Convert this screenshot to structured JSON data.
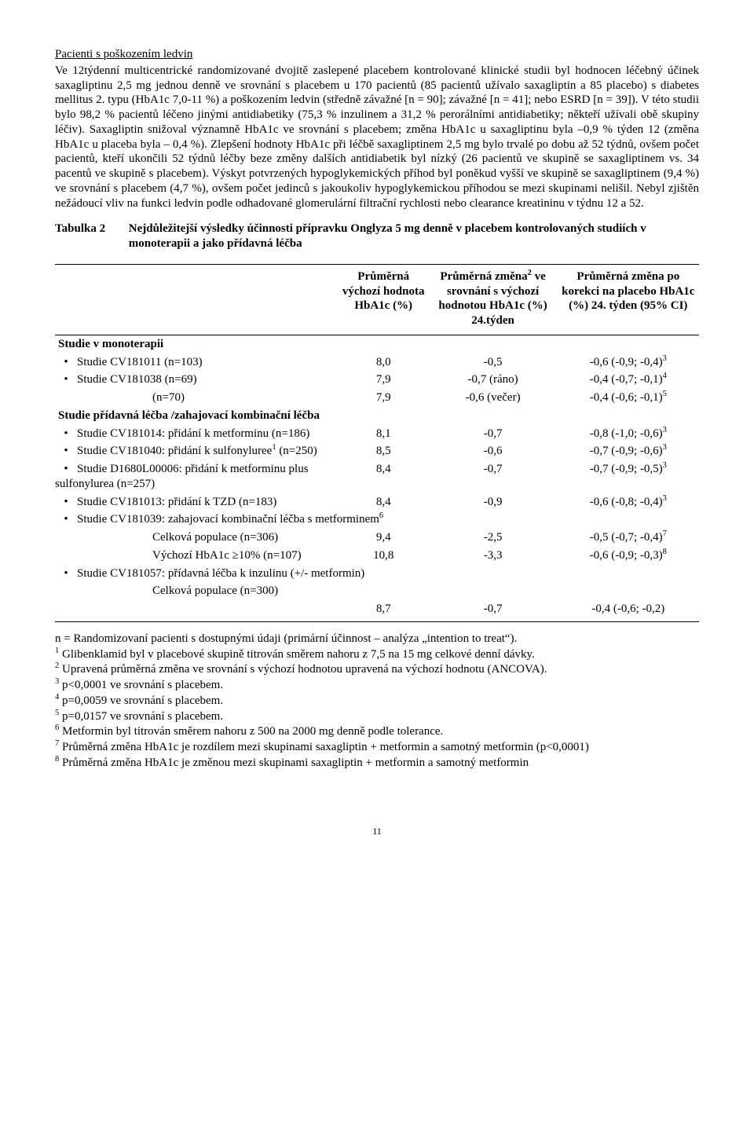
{
  "heading": "Pacienti s poškozením ledvin",
  "paragraph": "Ve 12týdenní multicentrické randomizované dvojitě zaslepené placebem kontrolované klinické studii byl hodnocen léčebný účinek saxagliptinu 2,5 mg jednou denně ve srovnání s placebem u 170 pacientů (85 pacientů užívalo saxagliptin a 85 placebo) s diabetes mellitus 2. typu (HbA1c 7,0-11 %) a poškozením ledvin (středně závažné [n = 90]; závažné [n = 41]; nebo ESRD [n = 39]). V této studii bylo 98,2 % pacientů léčeno jinými antidiabetiky (75,3 % inzulinem a 31,2 % perorálními antidiabetiky; někteří užívali obě skupiny léčiv). Saxagliptin snižoval významně HbA1c ve srovnání s placebem; změna HbA1c u saxagliptinu byla –0,9 % týden 12 (změna HbA1c u placeba byla – 0,4 %). Zlepšení hodnoty HbA1c při léčbě saxagliptinem 2,5 mg bylo trvalé po dobu až 52 týdnů, ovšem počet pacientů, kteří ukončili 52 týdnů léčby beze změny dalších antidiabetik byl nízký (26 pacientů ve skupině se saxagliptinem vs. 34 pacentů ve skupině s placebem). Výskyt potvrzených hypoglykemických příhod byl poněkud vyšší ve skupině se saxagliptinem (9,4 %) ve srovnání s placebem (4,7 %), ovšem počet jedinců s jakoukoliv hypoglykemickou příhodou se mezi skupinami nelišil. Nebyl zjištěn nežádoucí vliv na funkci ledvin podle odhadované glomerulární filtrační rychlosti nebo clearance kreatininu v týdnu 12 a 52.",
  "table_caption_lead": "Tabulka 2",
  "table_caption_rest": "Nejdůležitejší výsledky účinnosti přípravku Onglyza 5 mg denně v placebem kontrolovaných studiích v monoterapii a jako přídavná léčba",
  "columns": {
    "c1": "",
    "c2": "Průměrná výchozí hodnota HbA1c (%)",
    "c3_l1": "Průměrná změna",
    "c3_sup": "2",
    "c3_l2": " ve srovnání s výchozí hodnotou HbA1c (%) 24.týden",
    "c4": "Průměrná změna po korekci na placebo HbA1c (%) 24. týden (95% CI)"
  },
  "groups": {
    "g1": "Studie v monoterapii",
    "g2": "Studie přídavná léčba /zahajovací kombinační léčba"
  },
  "rows": {
    "r1": {
      "label": "Studie CV181011 (n=103)",
      "a": "8,0",
      "b": "-0,5",
      "c": "-0,6 (-0,9; -0,4)",
      "csup": "3"
    },
    "r2": {
      "label": "Studie CV181038 (n=69)",
      "a": "7,9",
      "b": "-0,7 (ráno)",
      "c": "-0,4 (-0,7; -0,1)",
      "csup": "4"
    },
    "r2b": {
      "label": "(n=70)",
      "a": "7,9",
      "b": "-0,6 (večer)",
      "c": "-0,4 (-0,6; -0,1)",
      "csup": "5"
    },
    "r3": {
      "label": "Studie CV181014: přidání k metforminu (n=186)",
      "a": "8,1",
      "b": "-0,7",
      "c": "-0,8 (-1,0; -0,6)",
      "csup": "3"
    },
    "r4": {
      "label_a": "Studie CV181040: přidání k sulfonyluree",
      "label_sup": "1",
      "label_b": " (n=250)",
      "a": "8,5",
      "b": "-0,6",
      "c": "-0,7 (-0,9; -0,6)",
      "csup": "3"
    },
    "r5": {
      "label": "Studie D1680L00006: přidání k metforminu plus sulfonylurea (n=257)",
      "a": "8,4",
      "b": "-0,7",
      "c": "-0,7 (-0,9; -0,5)",
      "csup": "3"
    },
    "r6": {
      "label": "Studie CV181013: přidání k TZD (n=183)",
      "a": "8,4",
      "b": "-0,9",
      "c": "-0,6 (-0,8; -0,4)",
      "csup": "3"
    },
    "r7": {
      "label_a": "Studie CV181039: zahajovací kombinační léčba s metforminem",
      "label_sup": "6"
    },
    "r7a": {
      "label": "Celková populace (n=306)",
      "a": "9,4",
      "b": "-2,5",
      "c": "-0,5 (-0,7; -0,4)",
      "csup": "7"
    },
    "r7b": {
      "label": "Výchozí HbA1c ≥10% (n=107)",
      "a": "10,8",
      "b": "-3,3",
      "c": "-0,6 (-0,9; -0,3)",
      "csup": "8"
    },
    "r8": {
      "label": "Studie CV181057: přídavná léčba k inzulinu (+/- metformin)"
    },
    "r8a": {
      "label": "Celková populace (n=300)",
      "a": "8,7",
      "b": "-0,7",
      "c": "-0,4 (-0,6; -0,2)"
    }
  },
  "footnotes": {
    "f1": "n = Randomizovaní pacienti s dostupnými údaji (primární účinnost – analýza „intention to treat“).",
    "f2a": "1",
    "f2b": " Glibenklamid byl v placebové skupině titrován směrem nahoru z 7,5 na 15 mg celkové denní dávky.",
    "f3a": "2",
    "f3b": " Upravená průměrná změna ve srovnání s výchozí hodnotou upravená na výchozí hodnotu (ANCOVA).",
    "f4a": "3",
    "f4b": " p<0,0001 ve srovnání s placebem.",
    "f5a": "4",
    "f5b": " p=0,0059 ve srovnání s placebem.",
    "f6a": "5",
    "f6b": " p=0,0157 ve srovnání s placebem.",
    "f7a": "6",
    "f7b": " Metformin byl titrován směrem nahoru z 500 na 2000 mg denně podle tolerance.",
    "f8a": "7",
    "f8b": " Průměrná změna HbA1c je rozdílem mezi skupinami saxagliptin + metformin a samotný metformin (p<0,0001)",
    "f9a": "8",
    "f9b": " Průměrná změna HbA1c je změnou mezi skupinami saxagliptin + metformin a samotný metformin"
  },
  "page_number": "11"
}
